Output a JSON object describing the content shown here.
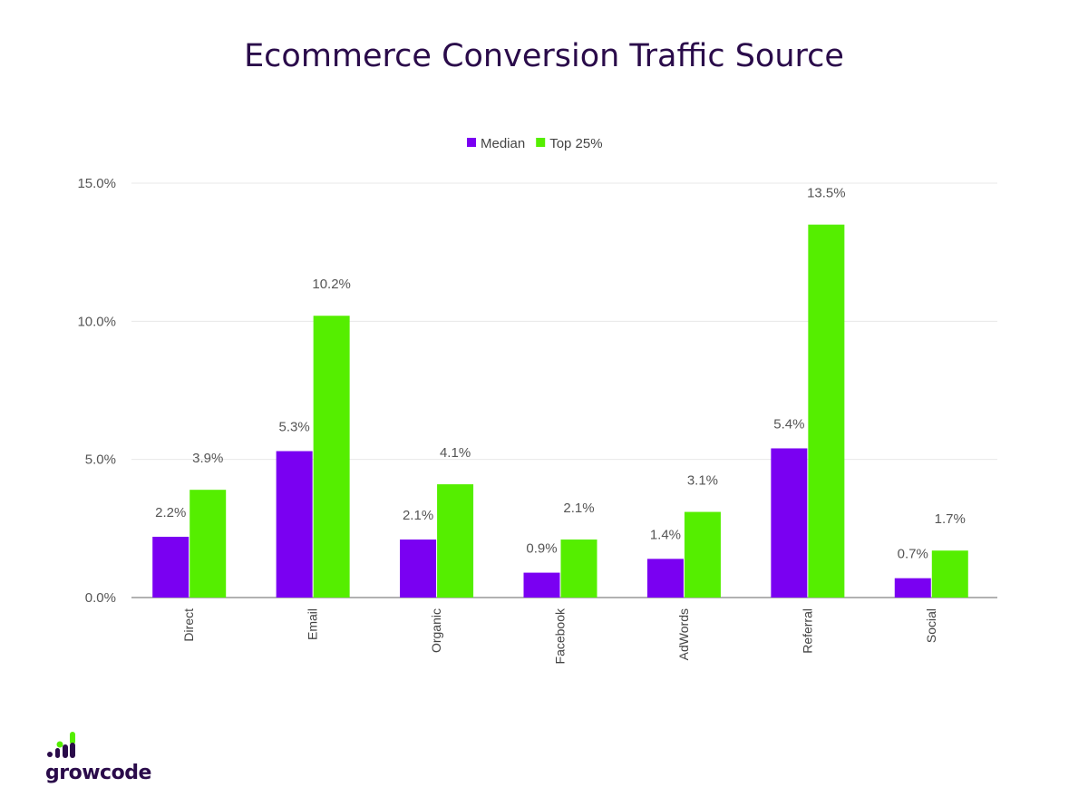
{
  "chart_data": {
    "type": "bar",
    "title": "Ecommerce Conversion Traffic Source",
    "categories": [
      "Direct",
      "Email",
      "Organic",
      "Facebook",
      "AdWords",
      "Referral",
      "Social"
    ],
    "series": [
      {
        "name": "Median",
        "color": "#7a00f2",
        "values": [
          2.2,
          5.3,
          2.1,
          0.9,
          1.4,
          5.4,
          0.7
        ],
        "labels": [
          "2.2%",
          "5.3%",
          "2.1%",
          "0.9%",
          "1.4%",
          "5.4%",
          "0.7%"
        ]
      },
      {
        "name": "Top 25%",
        "color": "#55ee00",
        "values": [
          3.9,
          10.2,
          4.1,
          2.1,
          3.1,
          13.5,
          1.7
        ],
        "labels": [
          "3.9%",
          "10.2%",
          "4.1%",
          "2.1%",
          "3.1%",
          "13.5%",
          "1.7%"
        ]
      }
    ],
    "yticks": [
      0,
      5,
      10,
      15
    ],
    "ytick_labels": [
      "0.0%",
      "5.0%",
      "10.0%",
      "15.0%"
    ],
    "ylim": [
      0,
      15
    ],
    "grid": true,
    "legend_position": "top-center",
    "xlabel": "",
    "ylabel": ""
  },
  "logo": {
    "text": "growcode"
  }
}
